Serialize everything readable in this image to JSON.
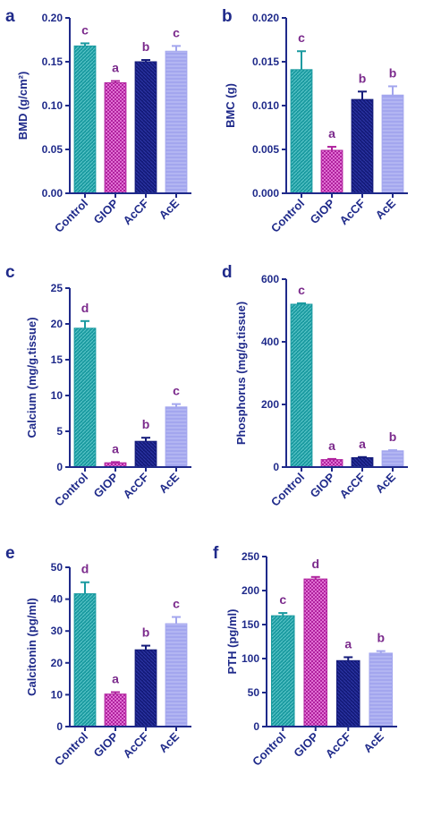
{
  "colors": {
    "axis": "#1f2a8a",
    "letter": "#7b2a8c",
    "bars": [
      "#1a9aa0",
      "#b0229e",
      "#141b7a",
      "#a3a6ee"
    ]
  },
  "chart_data": [
    {
      "panel": "a",
      "type": "bar",
      "categories": [
        "Control",
        "GIOP",
        "AcCF",
        "AcE"
      ],
      "values": [
        0.168,
        0.126,
        0.15,
        0.162
      ],
      "errors": [
        0.003,
        0.002,
        0.002,
        0.006
      ],
      "letters": [
        "c",
        "a",
        "b",
        "c"
      ],
      "ylabel": "BMD (g/cm²)",
      "ylim": [
        0,
        0.2
      ],
      "yticks": [
        "0.00",
        "0.05",
        "0.10",
        "0.15",
        "0.20"
      ]
    },
    {
      "panel": "b",
      "type": "bar",
      "categories": [
        "Control",
        "GIOP",
        "AcCF",
        "AcE"
      ],
      "values": [
        0.0141,
        0.0049,
        0.0107,
        0.0112
      ],
      "errors": [
        0.0021,
        0.0004,
        0.0009,
        0.001
      ],
      "letters": [
        "c",
        "a",
        "b",
        "b"
      ],
      "ylabel": "BMC (g)",
      "ylim": [
        0,
        0.02
      ],
      "yticks": [
        "0.000",
        "0.005",
        "0.010",
        "0.015",
        "0.020"
      ]
    },
    {
      "panel": "c",
      "type": "bar",
      "categories": [
        "Control",
        "GIOP",
        "AcCF",
        "AcE"
      ],
      "values": [
        19.4,
        0.6,
        3.6,
        8.4
      ],
      "errors": [
        1.0,
        0.1,
        0.5,
        0.4
      ],
      "letters": [
        "d",
        "a",
        "b",
        "c"
      ],
      "ylabel": "Calcium (mg/g.tissue)",
      "ylim": [
        0,
        25
      ],
      "yticks": [
        "0",
        "5",
        "10",
        "15",
        "20",
        "25"
      ]
    },
    {
      "panel": "d",
      "type": "bar",
      "categories": [
        "Control",
        "GIOP",
        "AcCF",
        "AcE"
      ],
      "values": [
        520,
        24,
        30,
        52
      ],
      "errors": [
        3,
        2,
        2,
        2
      ],
      "letters": [
        "c",
        "a",
        "a",
        "b"
      ],
      "ylabel": "Phosphorus (mg/g.tissue)",
      "ylim": [
        0,
        600
      ],
      "yticks": [
        "0",
        "200",
        "400",
        "600"
      ]
    },
    {
      "panel": "e",
      "type": "bar",
      "categories": [
        "Control",
        "GIOP",
        "AcCF",
        "AcE"
      ],
      "values": [
        41.7,
        10.2,
        24.1,
        32.3
      ],
      "errors": [
        3.6,
        0.6,
        1.3,
        2.1
      ],
      "letters": [
        "d",
        "a",
        "b",
        "c"
      ],
      "ylabel": "Calcitonin (pg/ml)",
      "ylim": [
        0,
        50
      ],
      "yticks": [
        "0",
        "10",
        "20",
        "30",
        "40",
        "50"
      ]
    },
    {
      "panel": "f",
      "type": "bar",
      "categories": [
        "Control",
        "GIOP",
        "AcCF",
        "AcE"
      ],
      "values": [
        163,
        217,
        97,
        108
      ],
      "errors": [
        4,
        3,
        5,
        3
      ],
      "letters": [
        "c",
        "d",
        "a",
        "b"
      ],
      "ylabel": "PTH (pg/ml)",
      "ylim": [
        0,
        250
      ],
      "yticks": [
        "0",
        "50",
        "100",
        "150",
        "200",
        "250"
      ]
    }
  ]
}
